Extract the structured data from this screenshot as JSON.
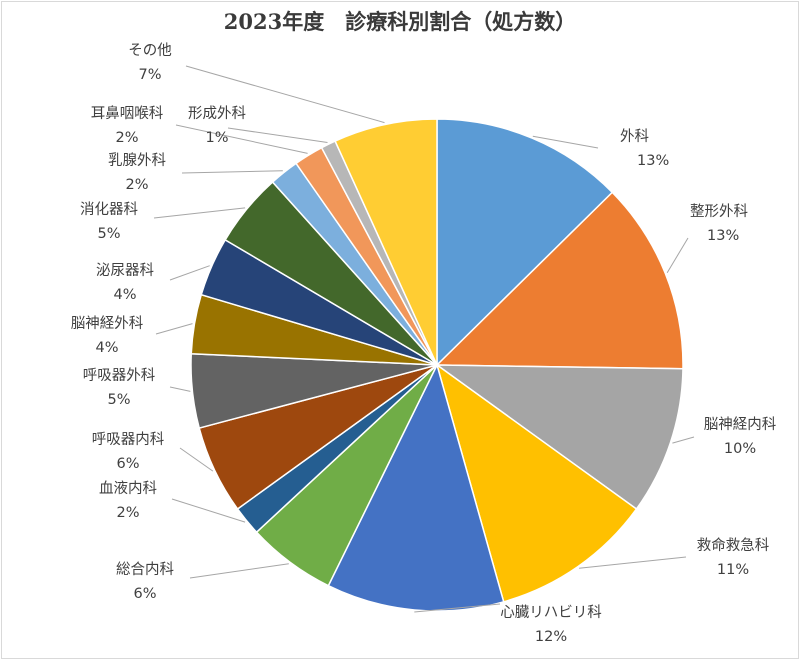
{
  "chart_data": {
    "type": "pie",
    "title": "2023年度　診療科別割合（処方数）",
    "slices": [
      {
        "name": "外科",
        "value": 13,
        "label": "13%",
        "color": "#5b9bd5"
      },
      {
        "name": "整形外科",
        "value": 13,
        "label": "13%",
        "color": "#ed7d31"
      },
      {
        "name": "脳神経内科",
        "value": 10,
        "label": "10%",
        "color": "#a5a5a5"
      },
      {
        "name": "救命救急科",
        "value": 11,
        "label": "11%",
        "color": "#ffc000"
      },
      {
        "name": "心臓リハビリ科",
        "value": 12,
        "label": "12%",
        "color": "#4472c4"
      },
      {
        "name": "総合内科",
        "value": 6,
        "label": "6%",
        "color": "#70ad47"
      },
      {
        "name": "血液内科",
        "value": 2,
        "label": "2%",
        "color": "#255e91"
      },
      {
        "name": "呼吸器内科",
        "value": 6,
        "label": "6%",
        "color": "#9e480e"
      },
      {
        "name": "呼吸器外科",
        "value": 5,
        "label": "5%",
        "color": "#636363"
      },
      {
        "name": "脳神経外科",
        "value": 4,
        "label": "4%",
        "color": "#997300"
      },
      {
        "name": "泌尿器科",
        "value": 4,
        "label": "4%",
        "color": "#264478"
      },
      {
        "name": "消化器科",
        "value": 5,
        "label": "5%",
        "color": "#43682b"
      },
      {
        "name": "乳腺外科",
        "value": 2,
        "label": "2%",
        "color": "#7cafdd"
      },
      {
        "name": "耳鼻咽喉科",
        "value": 2,
        "label": "2%",
        "color": "#f1975a"
      },
      {
        "name": "形成外科",
        "value": 1,
        "label": "1%",
        "color": "#b7b7b7"
      },
      {
        "name": "その他",
        "value": 7,
        "label": "7%",
        "color": "#ffcd33"
      }
    ],
    "legend": "none",
    "data_labels": "outside-with-leader-lines"
  }
}
